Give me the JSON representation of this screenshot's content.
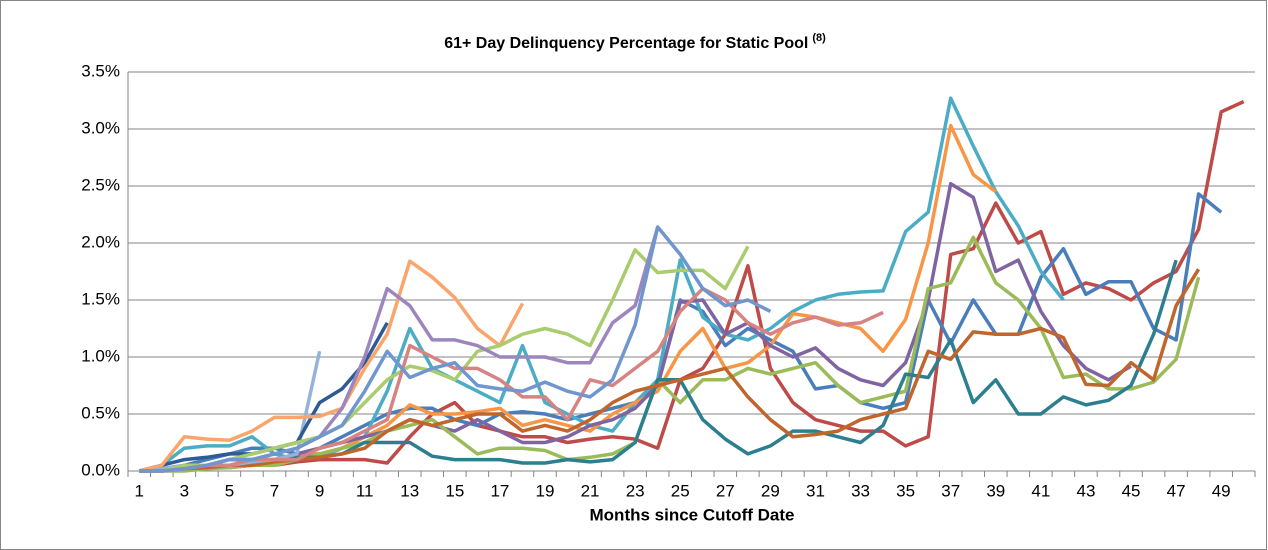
{
  "chart_data": {
    "type": "line",
    "title": "61+ Day Delinquency Percentage for Static Pool",
    "title_note": "(8)",
    "x_label": "Months since Cutoff Date",
    "categories": [
      1,
      null,
      3,
      null,
      5,
      null,
      7,
      null,
      9,
      null,
      11,
      null,
      13,
      null,
      15,
      null,
      17,
      null,
      19,
      null,
      21,
      null,
      23,
      null,
      25,
      null,
      27,
      null,
      29,
      null,
      31,
      null,
      33,
      null,
      35,
      null,
      37,
      null,
      39,
      null,
      41,
      null,
      43,
      null,
      45,
      null,
      47,
      null,
      49,
      null
    ],
    "ylim": [
      0,
      3.5
    ],
    "yticks": [
      {
        "value": 0,
        "label": "0.0%"
      },
      {
        "value": 0.5,
        "label": "0.5%"
      },
      {
        "value": 1,
        "label": "1.0%"
      },
      {
        "value": 1.5,
        "label": "1.5%"
      },
      {
        "value": 2,
        "label": "2.0%"
      },
      {
        "value": 2.5,
        "label": "2.5%"
      },
      {
        "value": 3,
        "label": "3.0%"
      },
      {
        "value": 3.5,
        "label": "3.5%"
      }
    ],
    "grid": true,
    "series": [
      {
        "color": "#be4b48",
        "values": [
          0,
          0,
          0.02,
          0.03,
          0.03,
          0.05,
          0.05,
          0.08,
          0.1,
          0.1,
          0.1,
          0.07,
          0.3,
          0.5,
          0.6,
          0.4,
          0.35,
          0.3,
          0.3,
          0.25,
          0.28,
          0.3,
          0.28,
          0.2,
          0.8,
          0.9,
          1.2,
          1.8,
          0.9,
          0.6,
          0.45,
          0.4,
          0.35,
          0.35,
          0.22,
          0.3,
          1.9,
          1.95,
          2.35,
          2.0,
          2.1,
          1.55,
          1.65,
          1.6,
          1.5,
          1.65,
          1.75,
          2.12,
          3.15,
          3.24
        ]
      },
      {
        "color": "#4a7ebb",
        "values": [
          0,
          0.02,
          0.05,
          0.1,
          0.15,
          0.2,
          0.2,
          0.15,
          0.2,
          0.3,
          0.4,
          0.5,
          0.55,
          0.55,
          0.45,
          0.4,
          0.5,
          0.52,
          0.5,
          0.45,
          0.5,
          0.55,
          0.6,
          0.75,
          1.5,
          1.4,
          1.1,
          1.25,
          1.15,
          1.05,
          0.72,
          0.75,
          0.6,
          0.55,
          0.6,
          1.5,
          1.12,
          1.5,
          1.2,
          1.2,
          1.7,
          1.95,
          1.55,
          1.66,
          1.66,
          1.25,
          1.15,
          2.43,
          2.27,
          null
        ]
      },
      {
        "color": "#4bacc6",
        "values": [
          0,
          0.05,
          0.2,
          0.22,
          0.22,
          0.3,
          0.15,
          0.1,
          0.12,
          0.2,
          0.3,
          0.7,
          1.25,
          0.9,
          0.8,
          0.7,
          0.6,
          1.1,
          0.6,
          0.5,
          0.4,
          0.35,
          0.6,
          0.8,
          1.85,
          1.35,
          1.2,
          1.15,
          1.25,
          1.4,
          1.5,
          1.55,
          1.57,
          1.58,
          2.1,
          2.27,
          3.27,
          2.85,
          2.45,
          2.15,
          1.75,
          1.5,
          null,
          null,
          null,
          null,
          null,
          null,
          null,
          null
        ]
      },
      {
        "color": "#f79646",
        "values": [
          0,
          0,
          0.02,
          0.05,
          0.05,
          0.08,
          0.1,
          0.15,
          0.15,
          0.2,
          0.3,
          0.4,
          0.58,
          0.5,
          0.5,
          0.52,
          0.55,
          0.4,
          0.45,
          0.4,
          0.35,
          0.5,
          0.6,
          0.7,
          1.05,
          1.25,
          0.9,
          0.95,
          1.1,
          1.38,
          1.35,
          1.3,
          1.25,
          1.05,
          1.33,
          2.0,
          3.03,
          2.6,
          2.45,
          null,
          null,
          null,
          null,
          null,
          null,
          null,
          null,
          null,
          null,
          null
        ]
      },
      {
        "color": "#8064a2",
        "values": [
          0,
          0,
          0.02,
          0.05,
          0.1,
          0.1,
          0.1,
          0.15,
          0.2,
          0.25,
          0.3,
          0.35,
          0.45,
          0.4,
          0.35,
          0.45,
          0.35,
          0.25,
          0.25,
          0.3,
          0.4,
          0.45,
          0.55,
          0.75,
          1.48,
          1.5,
          1.2,
          1.3,
          1.1,
          1.0,
          1.08,
          0.9,
          0.8,
          0.75,
          0.95,
          1.5,
          2.52,
          2.4,
          1.75,
          1.85,
          1.4,
          1.1,
          0.9,
          0.8,
          0.92,
          null,
          null,
          null,
          null,
          null
        ]
      },
      {
        "color": "#9bbb59",
        "values": [
          0,
          0,
          0,
          0.02,
          0.03,
          0.05,
          0.05,
          0.1,
          0.15,
          0.2,
          0.25,
          0.35,
          0.4,
          0.45,
          0.3,
          0.15,
          0.2,
          0.2,
          0.18,
          0.1,
          0.12,
          0.15,
          0.25,
          0.8,
          0.6,
          0.8,
          0.8,
          0.9,
          0.85,
          0.9,
          0.95,
          0.75,
          0.6,
          0.65,
          0.7,
          1.6,
          1.65,
          2.05,
          1.65,
          1.5,
          1.25,
          0.82,
          0.85,
          0.72,
          0.72,
          0.78,
          0.98,
          1.7,
          null,
          null
        ]
      },
      {
        "color": "#2c7f8e",
        "values": [
          0,
          0,
          0.02,
          0.05,
          0.1,
          0.1,
          0.1,
          0.12,
          0.12,
          0.15,
          0.25,
          0.25,
          0.25,
          0.13,
          0.1,
          0.1,
          0.1,
          0.07,
          0.07,
          0.1,
          0.08,
          0.1,
          0.25,
          0.8,
          0.8,
          0.45,
          0.28,
          0.15,
          0.22,
          0.35,
          0.35,
          0.3,
          0.25,
          0.4,
          0.85,
          0.82,
          1.15,
          0.6,
          0.8,
          0.5,
          0.5,
          0.65,
          0.58,
          0.62,
          0.75,
          1.2,
          1.85,
          null,
          null,
          null
        ]
      },
      {
        "color": "#c0652b",
        "values": [
          0,
          0,
          0.02,
          0.03,
          0.05,
          0.05,
          0.08,
          0.1,
          0.12,
          0.15,
          0.2,
          0.35,
          0.45,
          0.4,
          0.45,
          0.5,
          0.5,
          0.35,
          0.4,
          0.35,
          0.45,
          0.6,
          0.7,
          0.75,
          0.8,
          0.85,
          0.9,
          0.65,
          0.45,
          0.3,
          0.32,
          0.35,
          0.45,
          0.5,
          0.55,
          1.05,
          0.98,
          1.22,
          1.2,
          1.2,
          1.25,
          1.17,
          0.76,
          0.75,
          0.95,
          0.8,
          1.45,
          1.77,
          null,
          null
        ]
      },
      {
        "color": "#95b3d7",
        "values": [
          0,
          0.02,
          0.05,
          0.05,
          0.05,
          0.08,
          0.1,
          0.15,
          1.05,
          null,
          null,
          null,
          null,
          null,
          null,
          null,
          null,
          null,
          null,
          null,
          null,
          null,
          null,
          null,
          null,
          null,
          null,
          null,
          null,
          null,
          null,
          null,
          null,
          null,
          null,
          null,
          null,
          null,
          null,
          null,
          null,
          null,
          null,
          null,
          null,
          null,
          null,
          null,
          null,
          null
        ]
      },
      {
        "color": "#2e5b96",
        "values": [
          0,
          0.05,
          0.1,
          0.12,
          0.15,
          0.15,
          0.2,
          0.25,
          0.6,
          0.72,
          0.95,
          1.3,
          null,
          null,
          null,
          null,
          null,
          null,
          null,
          null,
          null,
          null,
          null,
          null,
          null,
          null,
          null,
          null,
          null,
          null,
          null,
          null,
          null,
          null,
          null,
          null,
          null,
          null,
          null,
          null,
          null,
          null,
          null,
          null,
          null,
          null,
          null,
          null,
          null,
          null
        ]
      },
      {
        "color": "#f9a56b",
        "values": [
          0,
          0.05,
          0.3,
          0.28,
          0.27,
          0.35,
          0.47,
          0.47,
          0.48,
          0.55,
          0.9,
          1.2,
          1.84,
          1.7,
          1.52,
          1.25,
          1.1,
          1.47,
          null,
          null,
          null,
          null,
          null,
          null,
          null,
          null,
          null,
          null,
          null,
          null,
          null,
          null,
          null,
          null,
          null,
          null,
          null,
          null,
          null,
          null,
          null,
          null,
          null,
          null,
          null,
          null,
          null,
          null,
          null,
          null
        ]
      },
      {
        "color": "#a9cc6e",
        "values": [
          0,
          0,
          0.05,
          0.05,
          0.1,
          0.15,
          0.2,
          0.25,
          0.3,
          0.4,
          0.6,
          0.8,
          0.92,
          0.88,
          0.8,
          1.05,
          1.1,
          1.2,
          1.25,
          1.2,
          1.1,
          1.5,
          1.94,
          1.74,
          1.76,
          1.76,
          1.6,
          1.97,
          null,
          null,
          null,
          null,
          null,
          null,
          null,
          null,
          null,
          null,
          null,
          null,
          null,
          null,
          null,
          null,
          null,
          null,
          null,
          null,
          null,
          null
        ]
      },
      {
        "color": "#9c86bd",
        "values": [
          0,
          0,
          0.02,
          0.05,
          0.1,
          0.1,
          0.15,
          0.2,
          0.3,
          0.55,
          1.0,
          1.6,
          1.45,
          1.15,
          1.15,
          1.1,
          1.0,
          1.0,
          1.0,
          0.95,
          0.95,
          1.3,
          1.45,
          2.14,
          null,
          null,
          null,
          null,
          null,
          null,
          null,
          null,
          null,
          null,
          null,
          null,
          null,
          null,
          null,
          null,
          null,
          null,
          null,
          null,
          null,
          null,
          null,
          null,
          null,
          null
        ]
      },
      {
        "color": "#d68382",
        "values": [
          0,
          0,
          0.02,
          0.05,
          0.05,
          0.1,
          0.1,
          0.1,
          0.2,
          0.25,
          0.35,
          0.45,
          1.1,
          1.0,
          0.9,
          0.9,
          0.8,
          0.65,
          0.65,
          0.45,
          0.8,
          0.75,
          0.9,
          1.05,
          1.4,
          1.6,
          1.5,
          1.3,
          1.2,
          1.3,
          1.35,
          1.28,
          1.3,
          1.39,
          null,
          null,
          null,
          null,
          null,
          null,
          null,
          null,
          null,
          null,
          null,
          null,
          null,
          null,
          null,
          null
        ]
      },
      {
        "color": "#6f96cf",
        "values": [
          0,
          0,
          0.02,
          0.05,
          0.1,
          0.1,
          0.15,
          0.2,
          0.3,
          0.4,
          0.7,
          1.05,
          0.82,
          0.9,
          0.95,
          0.75,
          0.72,
          0.7,
          0.78,
          0.7,
          0.65,
          0.8,
          1.28,
          2.14,
          1.9,
          1.6,
          1.45,
          1.5,
          1.4,
          null,
          null,
          null,
          null,
          null,
          null,
          null,
          null,
          null,
          null,
          null,
          null,
          null,
          null,
          null,
          null,
          null,
          null,
          null,
          null,
          null
        ]
      }
    ]
  }
}
